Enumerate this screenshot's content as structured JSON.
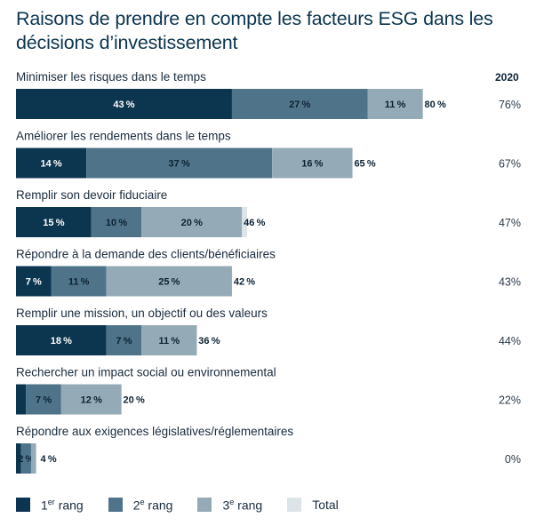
{
  "chart_data": {
    "type": "bar",
    "orientation": "horizontal-stacked",
    "title": "Raisons de prendre en compte les facteurs ESG dans les décisions d’investissement",
    "year_header": "2020",
    "categories": [
      "Minimiser les risques dans le temps",
      "Améliorer les rendements dans le temps",
      "Remplir son devoir fiduciaire",
      "Répondre à la demande des clients/bénéficiaires",
      "Remplir une mission, un objectif ou des valeurs",
      "Rechercher un impact social ou environnemental",
      "Répondre aux exigences législatives/réglementaires"
    ],
    "series": [
      {
        "name": "1er rang",
        "values": [
          43,
          14,
          15,
          7,
          18,
          2,
          1
        ]
      },
      {
        "name": "2e rang",
        "values": [
          27,
          37,
          10,
          11,
          7,
          7,
          2
        ]
      },
      {
        "name": "3e rang",
        "values": [
          11,
          16,
          20,
          25,
          11,
          12,
          1
        ]
      },
      {
        "name": "Total",
        "values": [
          80,
          65,
          46,
          42,
          36,
          20,
          4
        ]
      }
    ],
    "segment_labels": [
      [
        "43 %",
        "27 %",
        "11 %",
        "80 %"
      ],
      [
        "14 %",
        "37 %",
        "16 %",
        "65 %"
      ],
      [
        "15 %",
        "10 %",
        "20 %",
        "46 %"
      ],
      [
        "7 %",
        "11 %",
        "25 %",
        "42 %"
      ],
      [
        "18 %",
        "7 %",
        "11 %",
        "36 %"
      ],
      [
        "",
        "7 %",
        "12 %",
        "20 %"
      ],
      [
        "",
        "2 %",
        "",
        "4 %"
      ]
    ],
    "previous_year_values": [
      "76%",
      "67%",
      "47%",
      "43%",
      "44%",
      "22%",
      "0%"
    ],
    "xlim": [
      0,
      100
    ],
    "legend": [
      {
        "label": "1er rang",
        "base": "1",
        "sup": "er",
        "suffix": " rang",
        "color": "#0c3550"
      },
      {
        "label": "2e rang",
        "base": "2",
        "sup": "e",
        "suffix": " rang",
        "color": "#4f7489"
      },
      {
        "label": "3e rang",
        "base": "3",
        "sup": "e",
        "suffix": " rang",
        "color": "#94abb7"
      },
      {
        "label": "Total",
        "base": "Total",
        "sup": "",
        "suffix": "",
        "color": "#dde4e8"
      }
    ],
    "legend_position": "bottom-left"
  },
  "colors": {
    "rank1": "#0c3550",
    "rank2": "#4f7489",
    "rank3": "#94abb7",
    "total": "#dde4e8",
    "label_light": "#ffffff",
    "label_dark": "#0c2233"
  }
}
